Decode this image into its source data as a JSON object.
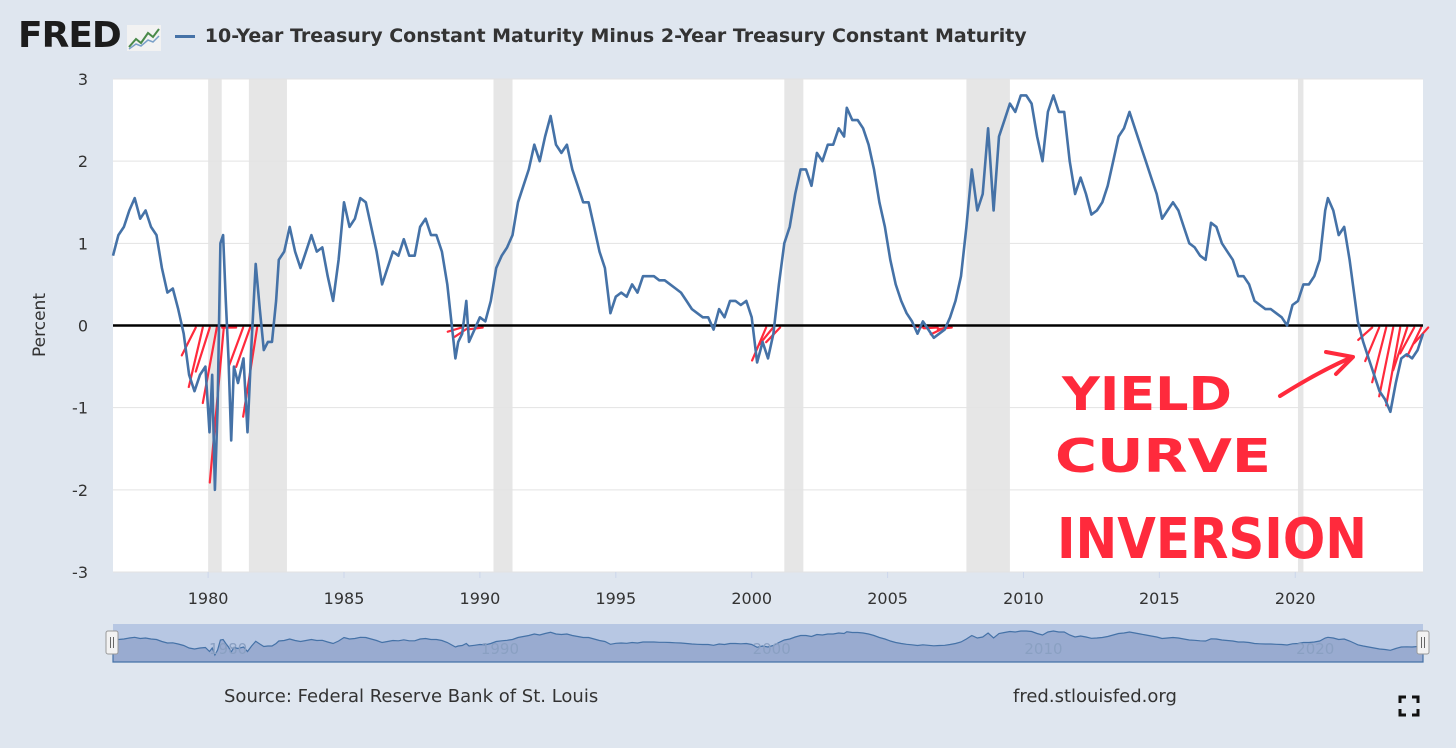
{
  "header": {
    "logo_text": "FRED",
    "logo_icon": "line-chart-icon",
    "series_title": "10-Year Treasury Constant Maturity Minus 2-Year Treasury Constant Maturity"
  },
  "colors": {
    "series_line": "#4572a7",
    "recession_band": "#e6e6e6",
    "zero_line": "#000000",
    "annotation": "#ff2a3c",
    "navigator_fill": "#99abd0"
  },
  "chart_data": {
    "type": "line",
    "title": "10-Year Treasury Constant Maturity Minus 2-Year Treasury Constant Maturity",
    "ylabel": "Percent",
    "xlabel": "",
    "xlim": [
      1976.5,
      2024.7
    ],
    "ylim": [
      -3,
      3
    ],
    "x_ticks": [
      "1980",
      "1985",
      "1990",
      "1995",
      "2000",
      "2005",
      "2010",
      "2015",
      "2020"
    ],
    "y_ticks": [
      "3",
      "2",
      "1",
      "0",
      "-1",
      "-2",
      "-3"
    ],
    "grid": true,
    "recessions": [
      [
        1980.0,
        1980.5
      ],
      [
        1981.5,
        1982.9
      ],
      [
        1990.5,
        1991.2
      ],
      [
        2001.2,
        2001.9
      ],
      [
        2007.9,
        2009.5
      ],
      [
        2020.1,
        2020.3
      ]
    ],
    "inverted_periods": [
      [
        1978.7,
        1980.3
      ],
      [
        1980.7,
        1981.9
      ],
      [
        1989.0,
        1989.9
      ],
      [
        2000.2,
        2001.0
      ],
      [
        2006.0,
        2007.1
      ],
      [
        2022.5,
        2024.7
      ]
    ],
    "series": [
      {
        "name": "10-Year Treasury Constant Maturity Minus 2-Year Treasury Constant Maturity",
        "points": [
          [
            1976.5,
            0.85
          ],
          [
            1976.7,
            1.1
          ],
          [
            1976.9,
            1.2
          ],
          [
            1977.1,
            1.4
          ],
          [
            1977.3,
            1.55
          ],
          [
            1977.5,
            1.3
          ],
          [
            1977.7,
            1.4
          ],
          [
            1977.9,
            1.2
          ],
          [
            1978.1,
            1.1
          ],
          [
            1978.3,
            0.7
          ],
          [
            1978.5,
            0.4
          ],
          [
            1978.7,
            0.45
          ],
          [
            1978.9,
            0.2
          ],
          [
            1979.1,
            -0.1
          ],
          [
            1979.3,
            -0.6
          ],
          [
            1979.5,
            -0.8
          ],
          [
            1979.7,
            -0.6
          ],
          [
            1979.9,
            -0.5
          ],
          [
            1980.05,
            -1.3
          ],
          [
            1980.15,
            -0.6
          ],
          [
            1980.25,
            -2.0
          ],
          [
            1980.35,
            -1.0
          ],
          [
            1980.45,
            1.0
          ],
          [
            1980.55,
            1.1
          ],
          [
            1980.65,
            0.3
          ],
          [
            1980.75,
            -0.4
          ],
          [
            1980.85,
            -1.4
          ],
          [
            1980.95,
            -0.5
          ],
          [
            1981.1,
            -0.7
          ],
          [
            1981.3,
            -0.4
          ],
          [
            1981.45,
            -1.3
          ],
          [
            1981.6,
            -0.2
          ],
          [
            1981.75,
            0.75
          ],
          [
            1981.9,
            0.2
          ],
          [
            1982.05,
            -0.3
          ],
          [
            1982.2,
            -0.2
          ],
          [
            1982.35,
            -0.2
          ],
          [
            1982.5,
            0.3
          ],
          [
            1982.6,
            0.8
          ],
          [
            1982.8,
            0.9
          ],
          [
            1983.0,
            1.2
          ],
          [
            1983.2,
            0.9
          ],
          [
            1983.4,
            0.7
          ],
          [
            1983.6,
            0.9
          ],
          [
            1983.8,
            1.1
          ],
          [
            1984.0,
            0.9
          ],
          [
            1984.2,
            0.95
          ],
          [
            1984.4,
            0.6
          ],
          [
            1984.6,
            0.3
          ],
          [
            1984.8,
            0.8
          ],
          [
            1985.0,
            1.5
          ],
          [
            1985.2,
            1.2
          ],
          [
            1985.4,
            1.3
          ],
          [
            1985.6,
            1.55
          ],
          [
            1985.8,
            1.5
          ],
          [
            1986.0,
            1.2
          ],
          [
            1986.2,
            0.9
          ],
          [
            1986.4,
            0.5
          ],
          [
            1986.6,
            0.7
          ],
          [
            1986.8,
            0.9
          ],
          [
            1987.0,
            0.85
          ],
          [
            1987.2,
            1.05
          ],
          [
            1987.4,
            0.85
          ],
          [
            1987.6,
            0.85
          ],
          [
            1987.8,
            1.2
          ],
          [
            1988.0,
            1.3
          ],
          [
            1988.2,
            1.1
          ],
          [
            1988.4,
            1.1
          ],
          [
            1988.6,
            0.9
          ],
          [
            1988.8,
            0.5
          ],
          [
            1988.9,
            0.2
          ],
          [
            1989.0,
            -0.1
          ],
          [
            1989.1,
            -0.4
          ],
          [
            1989.2,
            -0.2
          ],
          [
            1989.35,
            -0.1
          ],
          [
            1989.5,
            0.3
          ],
          [
            1989.6,
            -0.2
          ],
          [
            1989.8,
            -0.05
          ],
          [
            1990.0,
            0.1
          ],
          [
            1990.2,
            0.05
          ],
          [
            1990.4,
            0.3
          ],
          [
            1990.6,
            0.7
          ],
          [
            1990.8,
            0.85
          ],
          [
            1991.0,
            0.95
          ],
          [
            1991.2,
            1.1
          ],
          [
            1991.4,
            1.5
          ],
          [
            1991.6,
            1.7
          ],
          [
            1991.8,
            1.9
          ],
          [
            1992.0,
            2.2
          ],
          [
            1992.2,
            2.0
          ],
          [
            1992.4,
            2.3
          ],
          [
            1992.6,
            2.55
          ],
          [
            1992.8,
            2.2
          ],
          [
            1993.0,
            2.1
          ],
          [
            1993.2,
            2.2
          ],
          [
            1993.4,
            1.9
          ],
          [
            1993.6,
            1.7
          ],
          [
            1993.8,
            1.5
          ],
          [
            1994.0,
            1.5
          ],
          [
            1994.2,
            1.2
          ],
          [
            1994.4,
            0.9
          ],
          [
            1994.6,
            0.7
          ],
          [
            1994.8,
            0.15
          ],
          [
            1995.0,
            0.35
          ],
          [
            1995.2,
            0.4
          ],
          [
            1995.4,
            0.35
          ],
          [
            1995.6,
            0.5
          ],
          [
            1995.8,
            0.4
          ],
          [
            1996.0,
            0.6
          ],
          [
            1996.2,
            0.6
          ],
          [
            1996.4,
            0.6
          ],
          [
            1996.6,
            0.55
          ],
          [
            1996.8,
            0.55
          ],
          [
            1997.0,
            0.5
          ],
          [
            1997.2,
            0.45
          ],
          [
            1997.4,
            0.4
          ],
          [
            1997.6,
            0.3
          ],
          [
            1997.8,
            0.2
          ],
          [
            1998.0,
            0.15
          ],
          [
            1998.2,
            0.1
          ],
          [
            1998.4,
            0.1
          ],
          [
            1998.6,
            -0.05
          ],
          [
            1998.8,
            0.2
          ],
          [
            1999.0,
            0.1
          ],
          [
            1999.2,
            0.3
          ],
          [
            1999.4,
            0.3
          ],
          [
            1999.6,
            0.25
          ],
          [
            1999.8,
            0.3
          ],
          [
            2000.0,
            0.1
          ],
          [
            2000.2,
            -0.45
          ],
          [
            2000.4,
            -0.2
          ],
          [
            2000.6,
            -0.4
          ],
          [
            2000.8,
            -0.1
          ],
          [
            2001.0,
            0.5
          ],
          [
            2001.2,
            1.0
          ],
          [
            2001.4,
            1.2
          ],
          [
            2001.6,
            1.6
          ],
          [
            2001.8,
            1.9
          ],
          [
            2002.0,
            1.9
          ],
          [
            2002.2,
            1.7
          ],
          [
            2002.4,
            2.1
          ],
          [
            2002.6,
            2.0
          ],
          [
            2002.8,
            2.2
          ],
          [
            2003.0,
            2.2
          ],
          [
            2003.2,
            2.4
          ],
          [
            2003.4,
            2.3
          ],
          [
            2003.5,
            2.65
          ],
          [
            2003.7,
            2.5
          ],
          [
            2003.9,
            2.5
          ],
          [
            2004.1,
            2.4
          ],
          [
            2004.3,
            2.2
          ],
          [
            2004.5,
            1.9
          ],
          [
            2004.7,
            1.5
          ],
          [
            2004.9,
            1.2
          ],
          [
            2005.1,
            0.8
          ],
          [
            2005.3,
            0.5
          ],
          [
            2005.5,
            0.3
          ],
          [
            2005.7,
            0.15
          ],
          [
            2005.9,
            0.05
          ],
          [
            2006.1,
            -0.1
          ],
          [
            2006.3,
            0.05
          ],
          [
            2006.5,
            -0.05
          ],
          [
            2006.7,
            -0.15
          ],
          [
            2006.9,
            -0.1
          ],
          [
            2007.1,
            -0.05
          ],
          [
            2007.3,
            0.1
          ],
          [
            2007.5,
            0.3
          ],
          [
            2007.7,
            0.6
          ],
          [
            2007.9,
            1.2
          ],
          [
            2008.1,
            1.9
          ],
          [
            2008.3,
            1.4
          ],
          [
            2008.5,
            1.6
          ],
          [
            2008.7,
            2.4
          ],
          [
            2008.9,
            1.4
          ],
          [
            2009.1,
            2.3
          ],
          [
            2009.3,
            2.5
          ],
          [
            2009.5,
            2.7
          ],
          [
            2009.7,
            2.6
          ],
          [
            2009.9,
            2.8
          ],
          [
            2010.1,
            2.8
          ],
          [
            2010.3,
            2.7
          ],
          [
            2010.5,
            2.3
          ],
          [
            2010.7,
            2.0
          ],
          [
            2010.9,
            2.6
          ],
          [
            2011.1,
            2.8
          ],
          [
            2011.3,
            2.6
          ],
          [
            2011.5,
            2.6
          ],
          [
            2011.7,
            2.0
          ],
          [
            2011.9,
            1.6
          ],
          [
            2012.1,
            1.8
          ],
          [
            2012.3,
            1.6
          ],
          [
            2012.5,
            1.35
          ],
          [
            2012.7,
            1.4
          ],
          [
            2012.9,
            1.5
          ],
          [
            2013.1,
            1.7
          ],
          [
            2013.3,
            2.0
          ],
          [
            2013.5,
            2.3
          ],
          [
            2013.7,
            2.4
          ],
          [
            2013.9,
            2.6
          ],
          [
            2014.1,
            2.4
          ],
          [
            2014.3,
            2.2
          ],
          [
            2014.5,
            2.0
          ],
          [
            2014.7,
            1.8
          ],
          [
            2014.9,
            1.6
          ],
          [
            2015.1,
            1.3
          ],
          [
            2015.3,
            1.4
          ],
          [
            2015.5,
            1.5
          ],
          [
            2015.7,
            1.4
          ],
          [
            2015.9,
            1.2
          ],
          [
            2016.1,
            1.0
          ],
          [
            2016.3,
            0.95
          ],
          [
            2016.5,
            0.85
          ],
          [
            2016.7,
            0.8
          ],
          [
            2016.9,
            1.25
          ],
          [
            2017.1,
            1.2
          ],
          [
            2017.3,
            1.0
          ],
          [
            2017.5,
            0.9
          ],
          [
            2017.7,
            0.8
          ],
          [
            2017.9,
            0.6
          ],
          [
            2018.1,
            0.6
          ],
          [
            2018.3,
            0.5
          ],
          [
            2018.5,
            0.3
          ],
          [
            2018.7,
            0.25
          ],
          [
            2018.9,
            0.2
          ],
          [
            2019.1,
            0.2
          ],
          [
            2019.3,
            0.15
          ],
          [
            2019.5,
            0.1
          ],
          [
            2019.7,
            0.0
          ],
          [
            2019.9,
            0.25
          ],
          [
            2020.1,
            0.3
          ],
          [
            2020.3,
            0.5
          ],
          [
            2020.5,
            0.5
          ],
          [
            2020.7,
            0.6
          ],
          [
            2020.9,
            0.8
          ],
          [
            2021.1,
            1.4
          ],
          [
            2021.2,
            1.55
          ],
          [
            2021.4,
            1.4
          ],
          [
            2021.6,
            1.1
          ],
          [
            2021.8,
            1.2
          ],
          [
            2022.0,
            0.8
          ],
          [
            2022.2,
            0.3
          ],
          [
            2022.3,
            0.05
          ],
          [
            2022.5,
            -0.2
          ],
          [
            2022.7,
            -0.4
          ],
          [
            2022.9,
            -0.6
          ],
          [
            2023.1,
            -0.8
          ],
          [
            2023.3,
            -0.9
          ],
          [
            2023.5,
            -1.05
          ],
          [
            2023.7,
            -0.7
          ],
          [
            2023.9,
            -0.4
          ],
          [
            2024.1,
            -0.35
          ],
          [
            2024.3,
            -0.4
          ],
          [
            2024.5,
            -0.3
          ],
          [
            2024.7,
            -0.1
          ]
        ]
      }
    ]
  },
  "annotation": {
    "lines": [
      "YIELD",
      "CURVE",
      "INVERSION"
    ]
  },
  "navigator": {
    "labels": [
      "1980",
      "1990",
      "2000",
      "2010",
      "2020"
    ]
  },
  "footer": {
    "source": "Source: Federal Reserve Bank of St. Louis",
    "url": "fred.stlouisfed.org",
    "fullscreen_icon": "fullscreen-icon"
  }
}
